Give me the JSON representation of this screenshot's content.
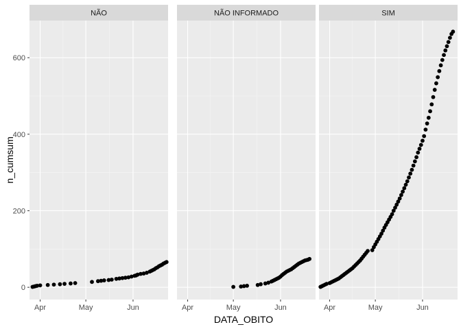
{
  "chart_data": {
    "type": "scatter",
    "facet_type": "wrap",
    "xlabel": "DATA_OBITO",
    "ylabel": "n_cumsum",
    "x_unit": "date",
    "xlim": [
      "2020-03-25",
      "2020-06-24"
    ],
    "ylim": [
      -32,
      697
    ],
    "x_ticks": [
      {
        "date": "2020-04-01",
        "label": "Apr"
      },
      {
        "date": "2020-05-01",
        "label": "May"
      },
      {
        "date": "2020-06-01",
        "label": "Jun"
      }
    ],
    "y_ticks": [
      0,
      200,
      400,
      600
    ],
    "grid": true,
    "point_color": "#000000",
    "panel_background": "#ebebeb",
    "strip_background": "#d9d9d9",
    "panels": [
      {
        "name": "NÃO",
        "points": [
          {
            "x": "2020-03-27",
            "y": 1
          },
          {
            "x": "2020-03-28",
            "y": 2
          },
          {
            "x": "2020-03-29",
            "y": 3
          },
          {
            "x": "2020-03-30",
            "y": 4
          },
          {
            "x": "2020-04-01",
            "y": 5
          },
          {
            "x": "2020-04-06",
            "y": 6
          },
          {
            "x": "2020-04-10",
            "y": 7
          },
          {
            "x": "2020-04-14",
            "y": 8
          },
          {
            "x": "2020-04-17",
            "y": 9
          },
          {
            "x": "2020-04-21",
            "y": 10
          },
          {
            "x": "2020-04-24",
            "y": 11
          },
          {
            "x": "2020-05-05",
            "y": 14
          },
          {
            "x": "2020-05-09",
            "y": 16
          },
          {
            "x": "2020-05-11",
            "y": 17
          },
          {
            "x": "2020-05-13",
            "y": 18
          },
          {
            "x": "2020-05-16",
            "y": 19
          },
          {
            "x": "2020-05-18",
            "y": 20
          },
          {
            "x": "2020-05-21",
            "y": 22
          },
          {
            "x": "2020-05-23",
            "y": 23
          },
          {
            "x": "2020-05-25",
            "y": 24
          },
          {
            "x": "2020-05-27",
            "y": 25
          },
          {
            "x": "2020-05-29",
            "y": 26
          },
          {
            "x": "2020-05-31",
            "y": 28
          },
          {
            "x": "2020-06-02",
            "y": 30
          },
          {
            "x": "2020-06-03",
            "y": 31
          },
          {
            "x": "2020-06-04",
            "y": 33
          },
          {
            "x": "2020-06-06",
            "y": 35
          },
          {
            "x": "2020-06-08",
            "y": 36
          },
          {
            "x": "2020-06-10",
            "y": 38
          },
          {
            "x": "2020-06-12",
            "y": 41
          },
          {
            "x": "2020-06-13",
            "y": 43
          },
          {
            "x": "2020-06-14",
            "y": 45
          },
          {
            "x": "2020-06-15",
            "y": 47
          },
          {
            "x": "2020-06-16",
            "y": 50
          },
          {
            "x": "2020-06-17",
            "y": 52
          },
          {
            "x": "2020-06-18",
            "y": 55
          },
          {
            "x": "2020-06-19",
            "y": 57
          },
          {
            "x": "2020-06-20",
            "y": 59
          },
          {
            "x": "2020-06-21",
            "y": 62
          },
          {
            "x": "2020-06-22",
            "y": 64
          },
          {
            "x": "2020-06-23",
            "y": 66
          }
        ]
      },
      {
        "name": "NÃO INFORMADO",
        "points": [
          {
            "x": "2020-05-01",
            "y": 1
          },
          {
            "x": "2020-05-06",
            "y": 2
          },
          {
            "x": "2020-05-08",
            "y": 3
          },
          {
            "x": "2020-05-10",
            "y": 4
          },
          {
            "x": "2020-05-17",
            "y": 6
          },
          {
            "x": "2020-05-19",
            "y": 8
          },
          {
            "x": "2020-05-22",
            "y": 10
          },
          {
            "x": "2020-05-24",
            "y": 12
          },
          {
            "x": "2020-05-26",
            "y": 15
          },
          {
            "x": "2020-05-27",
            "y": 17
          },
          {
            "x": "2020-05-28",
            "y": 19
          },
          {
            "x": "2020-05-29",
            "y": 21
          },
          {
            "x": "2020-05-30",
            "y": 23
          },
          {
            "x": "2020-05-31",
            "y": 25
          },
          {
            "x": "2020-06-01",
            "y": 28
          },
          {
            "x": "2020-06-02",
            "y": 32
          },
          {
            "x": "2020-06-03",
            "y": 35
          },
          {
            "x": "2020-06-04",
            "y": 38
          },
          {
            "x": "2020-06-05",
            "y": 41
          },
          {
            "x": "2020-06-06",
            "y": 43
          },
          {
            "x": "2020-06-07",
            "y": 45
          },
          {
            "x": "2020-06-08",
            "y": 47
          },
          {
            "x": "2020-06-09",
            "y": 50
          },
          {
            "x": "2020-06-10",
            "y": 53
          },
          {
            "x": "2020-06-11",
            "y": 56
          },
          {
            "x": "2020-06-12",
            "y": 59
          },
          {
            "x": "2020-06-13",
            "y": 62
          },
          {
            "x": "2020-06-14",
            "y": 64
          },
          {
            "x": "2020-06-15",
            "y": 66
          },
          {
            "x": "2020-06-16",
            "y": 68
          },
          {
            "x": "2020-06-17",
            "y": 70
          },
          {
            "x": "2020-06-18",
            "y": 71
          },
          {
            "x": "2020-06-19",
            "y": 72
          },
          {
            "x": "2020-06-20",
            "y": 74
          }
        ]
      },
      {
        "name": "SIM",
        "points": [
          {
            "x": "2020-03-26",
            "y": 1
          },
          {
            "x": "2020-03-27",
            "y": 3
          },
          {
            "x": "2020-03-28",
            "y": 5
          },
          {
            "x": "2020-03-29",
            "y": 7
          },
          {
            "x": "2020-03-30",
            "y": 9
          },
          {
            "x": "2020-04-01",
            "y": 11
          },
          {
            "x": "2020-04-02",
            "y": 13
          },
          {
            "x": "2020-04-03",
            "y": 15
          },
          {
            "x": "2020-04-04",
            "y": 17
          },
          {
            "x": "2020-04-05",
            "y": 19
          },
          {
            "x": "2020-04-06",
            "y": 21
          },
          {
            "x": "2020-04-07",
            "y": 23
          },
          {
            "x": "2020-04-08",
            "y": 26
          },
          {
            "x": "2020-04-09",
            "y": 29
          },
          {
            "x": "2020-04-10",
            "y": 32
          },
          {
            "x": "2020-04-11",
            "y": 35
          },
          {
            "x": "2020-04-12",
            "y": 38
          },
          {
            "x": "2020-04-13",
            "y": 41
          },
          {
            "x": "2020-04-14",
            "y": 44
          },
          {
            "x": "2020-04-15",
            "y": 47
          },
          {
            "x": "2020-04-16",
            "y": 50
          },
          {
            "x": "2020-04-17",
            "y": 54
          },
          {
            "x": "2020-04-18",
            "y": 58
          },
          {
            "x": "2020-04-19",
            "y": 62
          },
          {
            "x": "2020-04-20",
            "y": 66
          },
          {
            "x": "2020-04-21",
            "y": 70
          },
          {
            "x": "2020-04-22",
            "y": 75
          },
          {
            "x": "2020-04-23",
            "y": 80
          },
          {
            "x": "2020-04-24",
            "y": 85
          },
          {
            "x": "2020-04-25",
            "y": 90
          },
          {
            "x": "2020-04-26",
            "y": 95
          },
          {
            "x": "2020-04-29",
            "y": 97
          },
          {
            "x": "2020-04-30",
            "y": 105
          },
          {
            "x": "2020-05-01",
            "y": 112
          },
          {
            "x": "2020-05-02",
            "y": 119
          },
          {
            "x": "2020-05-03",
            "y": 126
          },
          {
            "x": "2020-05-04",
            "y": 133
          },
          {
            "x": "2020-05-05",
            "y": 140
          },
          {
            "x": "2020-05-06",
            "y": 148
          },
          {
            "x": "2020-05-07",
            "y": 156
          },
          {
            "x": "2020-05-08",
            "y": 163
          },
          {
            "x": "2020-05-09",
            "y": 170
          },
          {
            "x": "2020-05-10",
            "y": 177
          },
          {
            "x": "2020-05-11",
            "y": 184
          },
          {
            "x": "2020-05-12",
            "y": 191
          },
          {
            "x": "2020-05-13",
            "y": 200
          },
          {
            "x": "2020-05-14",
            "y": 208
          },
          {
            "x": "2020-05-15",
            "y": 216
          },
          {
            "x": "2020-05-16",
            "y": 224
          },
          {
            "x": "2020-05-17",
            "y": 232
          },
          {
            "x": "2020-05-18",
            "y": 241
          },
          {
            "x": "2020-05-19",
            "y": 250
          },
          {
            "x": "2020-05-20",
            "y": 259
          },
          {
            "x": "2020-05-21",
            "y": 268
          },
          {
            "x": "2020-05-22",
            "y": 277
          },
          {
            "x": "2020-05-23",
            "y": 287
          },
          {
            "x": "2020-05-24",
            "y": 297
          },
          {
            "x": "2020-05-25",
            "y": 307
          },
          {
            "x": "2020-05-26",
            "y": 318
          },
          {
            "x": "2020-05-27",
            "y": 329
          },
          {
            "x": "2020-05-28",
            "y": 340
          },
          {
            "x": "2020-05-29",
            "y": 352
          },
          {
            "x": "2020-05-30",
            "y": 362
          },
          {
            "x": "2020-05-31",
            "y": 372
          },
          {
            "x": "2020-06-01",
            "y": 383
          },
          {
            "x": "2020-06-02",
            "y": 395
          },
          {
            "x": "2020-06-03",
            "y": 412
          },
          {
            "x": "2020-06-04",
            "y": 428
          },
          {
            "x": "2020-06-05",
            "y": 443
          },
          {
            "x": "2020-06-06",
            "y": 460
          },
          {
            "x": "2020-06-07",
            "y": 478
          },
          {
            "x": "2020-06-08",
            "y": 497
          },
          {
            "x": "2020-06-09",
            "y": 516
          },
          {
            "x": "2020-06-10",
            "y": 533
          },
          {
            "x": "2020-06-11",
            "y": 549
          },
          {
            "x": "2020-06-12",
            "y": 565
          },
          {
            "x": "2020-06-13",
            "y": 580
          },
          {
            "x": "2020-06-14",
            "y": 594
          },
          {
            "x": "2020-06-15",
            "y": 607
          },
          {
            "x": "2020-06-16",
            "y": 619
          },
          {
            "x": "2020-06-17",
            "y": 630
          },
          {
            "x": "2020-06-18",
            "y": 641
          },
          {
            "x": "2020-06-19",
            "y": 652
          },
          {
            "x": "2020-06-20",
            "y": 662
          },
          {
            "x": "2020-06-21",
            "y": 668
          }
        ]
      }
    ]
  }
}
